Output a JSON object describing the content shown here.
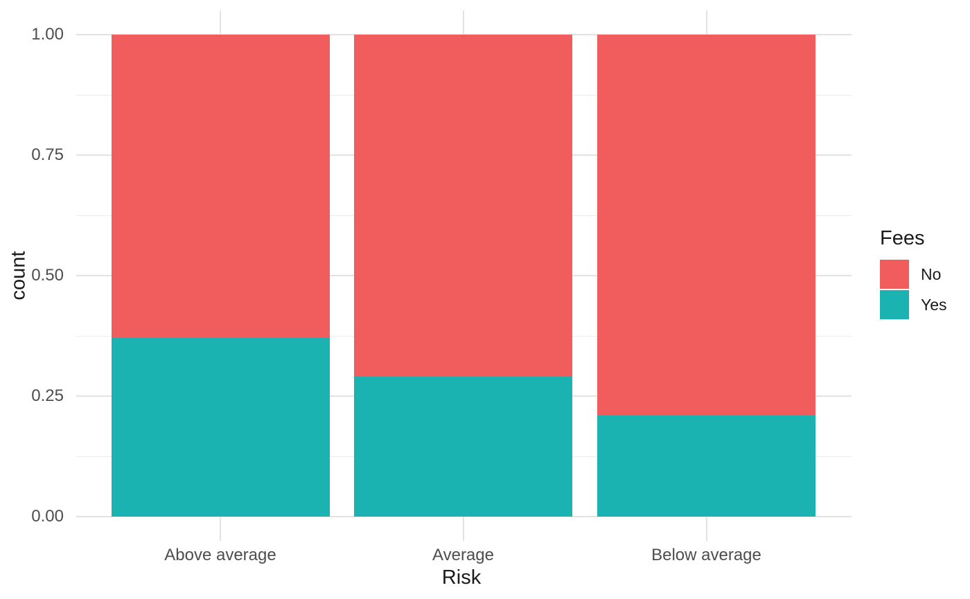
{
  "chart_data": {
    "type": "bar",
    "stacked": true,
    "normalized": true,
    "title": "",
    "xlabel": "Risk",
    "ylabel": "count",
    "categories": [
      "Above average",
      "Average",
      "Below average"
    ],
    "series": [
      {
        "name": "No",
        "color": "#F15D5D",
        "values": [
          0.63,
          0.71,
          0.79
        ]
      },
      {
        "name": "Yes",
        "color": "#1BB2B2",
        "values": [
          0.37,
          0.29,
          0.21
        ]
      }
    ],
    "stack_order_bottom_to_top": [
      "Yes",
      "No"
    ],
    "ylim": [
      0,
      1
    ],
    "ytick_labels": [
      "0.00",
      "0.25",
      "0.50",
      "0.75",
      "1.00"
    ],
    "ytick_values": [
      0,
      0.25,
      0.5,
      0.75,
      1
    ],
    "minor_gridline_values": [
      0.125,
      0.375,
      0.625,
      0.875
    ],
    "legend": {
      "title": "Fees",
      "position": "right",
      "entries": [
        "No",
        "Yes"
      ]
    },
    "grid": {
      "major": true,
      "minor": true,
      "background": "#ffffff"
    },
    "colors": {
      "grid_major": "#E2E2E2",
      "grid_minor": "#EBEBEB",
      "tick_text": "#4D4D4D",
      "title_text": "#1A1A1A"
    }
  }
}
